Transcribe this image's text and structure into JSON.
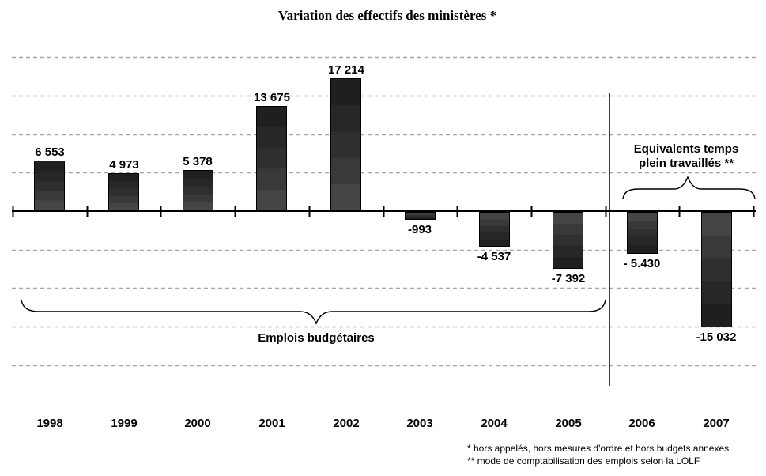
{
  "title": "Variation des effectifs des ministères *",
  "chart_data": {
    "type": "bar",
    "categories": [
      "1998",
      "1999",
      "2000",
      "2001",
      "2002",
      "2003",
      "2004",
      "2005",
      "2006",
      "2007"
    ],
    "values": [
      6553,
      4973,
      5378,
      13675,
      17214,
      -993,
      -4537,
      -7392,
      -5430,
      -15032
    ],
    "value_labels": [
      "6 553",
      "4 973",
      "5 378",
      "13 675",
      "17 214",
      "-993",
      "-4 537",
      "-7 392",
      "- 5.430",
      "-15 032"
    ],
    "title": "Variation des effectifs des ministères *",
    "xlabel": "",
    "ylabel": "",
    "ylim": [
      -20000,
      20000
    ],
    "gridline_step": 5000,
    "grid": "horizontal-dashed",
    "legend_position": "none",
    "bar_color": "dark gray gradient, darkest at bar extremity",
    "grid_color": "#a6a6a6",
    "annotations": {
      "left_group": {
        "label": "Emplois budgétaires",
        "brace": "below bars, spanning 1998-2005"
      },
      "right_group": {
        "label": "Equivalents temps plein travaillés **",
        "label_lines": [
          "Equivalents temps",
          "plein travaillés **"
        ],
        "brace": "above bars, spanning 2006-2007"
      },
      "divider": "vertical line between 2005 and 2006"
    }
  },
  "footnotes": [
    "* hors appelés, hors mesures d'ordre et hors budgets annexes",
    "** mode de comptabilisation des emplois selon la LOLF"
  ]
}
